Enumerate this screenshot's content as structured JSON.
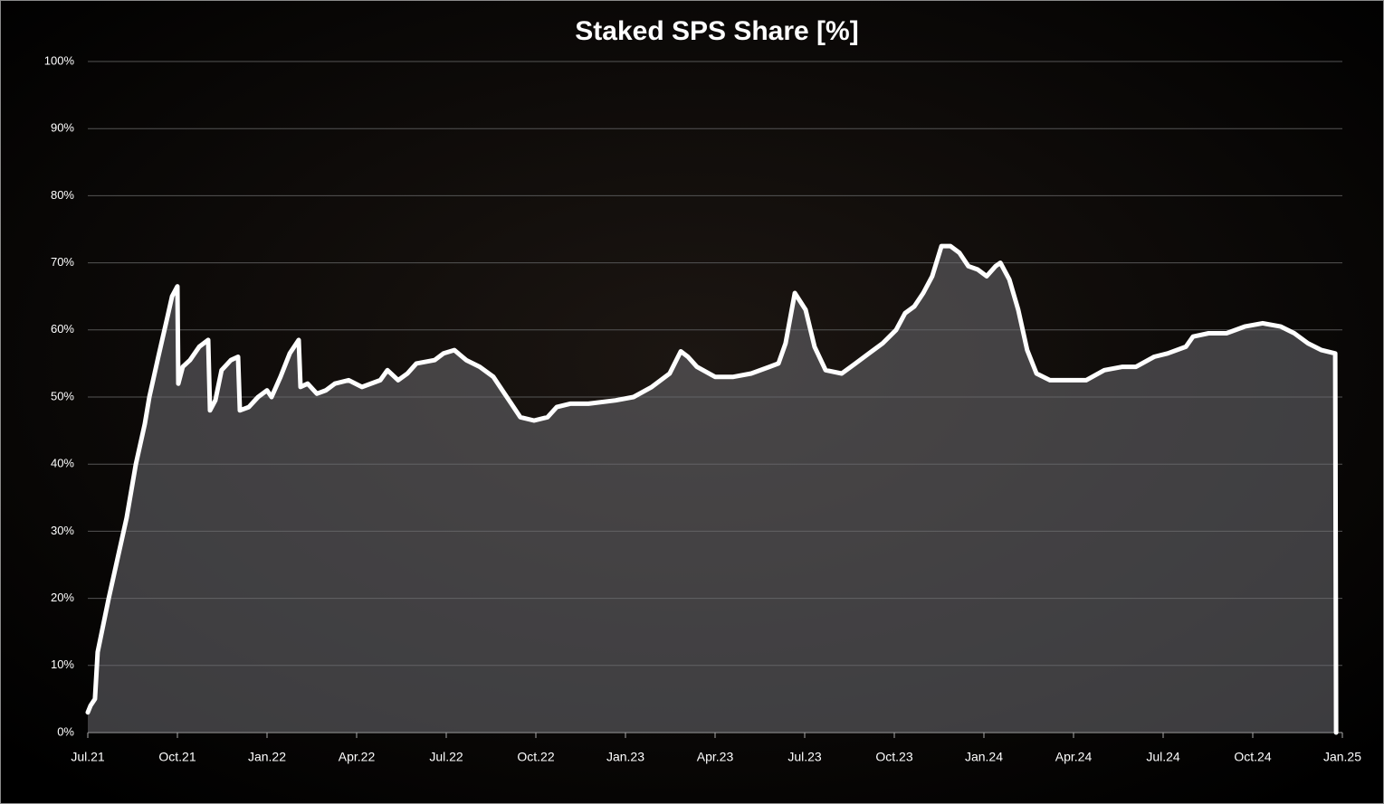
{
  "chart_data": {
    "type": "area",
    "title": "Staked SPS Share [%]",
    "color": "#ffffff",
    "fill": "rgba(110,110,115,0.55)",
    "grid": true,
    "xlim": [
      0,
      42
    ],
    "xticks": [
      {
        "value": 0,
        "label": "Jul.21"
      },
      {
        "value": 3,
        "label": "Oct.21"
      },
      {
        "value": 6,
        "label": "Jan.22"
      },
      {
        "value": 9,
        "label": "Apr.22"
      },
      {
        "value": 12,
        "label": "Jul.22"
      },
      {
        "value": 15,
        "label": "Oct.22"
      },
      {
        "value": 18,
        "label": "Jan.23"
      },
      {
        "value": 21,
        "label": "Apr.23"
      },
      {
        "value": 24,
        "label": "Jul.23"
      },
      {
        "value": 27,
        "label": "Oct.23"
      },
      {
        "value": 30,
        "label": "Jan.24"
      },
      {
        "value": 33,
        "label": "Apr.24"
      },
      {
        "value": 36,
        "label": "Jul.24"
      },
      {
        "value": 39,
        "label": "Oct.24"
      },
      {
        "value": 42,
        "label": "Jan.25"
      }
    ],
    "ylim": [
      0,
      100
    ],
    "yticks": [
      {
        "value": 0,
        "label": "0%"
      },
      {
        "value": 10,
        "label": "10%"
      },
      {
        "value": 20,
        "label": "20%"
      },
      {
        "value": 30,
        "label": "30%"
      },
      {
        "value": 40,
        "label": "40%"
      },
      {
        "value": 50,
        "label": "50%"
      },
      {
        "value": 60,
        "label": "60%"
      },
      {
        "value": 70,
        "label": "70%"
      },
      {
        "value": 80,
        "label": "80%"
      },
      {
        "value": 90,
        "label": "90%"
      },
      {
        "value": 100,
        "label": "100%"
      }
    ],
    "x": [
      0,
      0.09,
      0.24,
      0.33,
      0.7,
      1.0,
      1.3,
      1.61,
      1.91,
      2.06,
      2.36,
      2.67,
      2.82,
      3.0,
      3.03,
      3.18,
      3.42,
      3.73,
      4.03,
      4.09,
      4.27,
      4.48,
      4.79,
      5.03,
      5.09,
      5.39,
      5.7,
      6.0,
      6.15,
      6.45,
      6.76,
      7.06,
      7.12,
      7.36,
      7.67,
      7.97,
      8.27,
      8.73,
      9.18,
      9.79,
      10.03,
      10.39,
      10.7,
      11.0,
      11.61,
      11.91,
      12.27,
      12.67,
      13.12,
      13.58,
      13.88,
      14.18,
      14.48,
      14.94,
      15.39,
      15.7,
      16.15,
      16.76,
      17.67,
      18.27,
      18.88,
      19.48,
      19.85,
      20.09,
      20.39,
      21.0,
      21.61,
      22.21,
      22.82,
      23.12,
      23.36,
      23.67,
      24.03,
      24.33,
      24.7,
      25.24,
      25.7,
      26.15,
      26.61,
      27.06,
      27.36,
      27.67,
      27.97,
      28.27,
      28.58,
      28.88,
      29.18,
      29.48,
      29.79,
      30.09,
      30.39,
      30.55,
      30.85,
      31.15,
      31.45,
      31.76,
      32.21,
      32.82,
      33.42,
      34.03,
      34.64,
      35.09,
      35.7,
      36.15,
      36.76,
      37.0,
      37.52,
      38.12,
      38.73,
      39.33,
      39.94,
      40.39,
      40.85,
      41.3,
      41.76,
      41.79
    ],
    "values": [
      3,
      4,
      5,
      12,
      20,
      26,
      32,
      40,
      46,
      50,
      56,
      62,
      65,
      66.5,
      52,
      54.5,
      55.5,
      57.5,
      58.5,
      48,
      49.5,
      54,
      55.5,
      56,
      48,
      48.5,
      50,
      51,
      50,
      53,
      56.5,
      58.5,
      51.5,
      52,
      50.5,
      51,
      52,
      52.5,
      51.5,
      52.5,
      54,
      52.5,
      53.5,
      55,
      55.5,
      56.5,
      57,
      55.5,
      54.5,
      53,
      51,
      49,
      47,
      46.5,
      47,
      48.5,
      49,
      49,
      49.5,
      50,
      51.5,
      53.5,
      56.8,
      56,
      54.5,
      53,
      53,
      53.5,
      54.5,
      55,
      58,
      65.5,
      63,
      57.5,
      54,
      53.5,
      55,
      56.5,
      58,
      60,
      62.5,
      63.5,
      65.5,
      68,
      72.5,
      72.5,
      71.5,
      69.5,
      69,
      68,
      69.5,
      70,
      67.5,
      63,
      57,
      53.5,
      52.5,
      52.5,
      52.5,
      54,
      54.5,
      54.5,
      56,
      56.5,
      57.5,
      59,
      59.5,
      59.5,
      60.5,
      61,
      60.5,
      59.5,
      58,
      57,
      56.5,
      0
    ]
  }
}
